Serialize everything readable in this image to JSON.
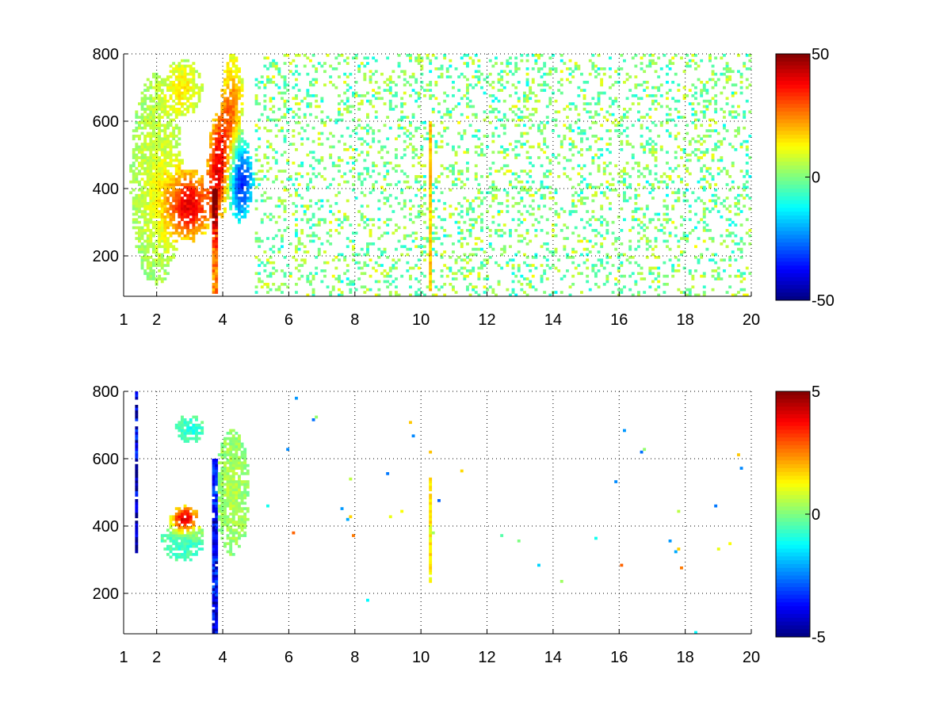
{
  "figure": {
    "background": "#ffffff"
  },
  "colormap": "jet",
  "chart_data": [
    {
      "type": "heatmap",
      "title": "",
      "xlabel": "",
      "ylabel": "",
      "xlim": [
        1,
        20
      ],
      "ylim": [
        80,
        800
      ],
      "grid": true,
      "x_ticks": [
        1,
        2,
        4,
        6,
        8,
        10,
        12,
        14,
        16,
        18,
        20
      ],
      "y_ticks": [
        200,
        400,
        600,
        800
      ],
      "colorbar": {
        "min": -50,
        "max": 50,
        "ticks": [
          -50,
          0,
          50
        ],
        "position": "right"
      },
      "features": [
        {
          "kind": "blob",
          "x": 3.0,
          "y": 350,
          "sx": 0.5,
          "sy": 75,
          "value": 38
        },
        {
          "kind": "blob",
          "x": 3.9,
          "y": 470,
          "sx": 0.25,
          "sy": 110,
          "value": 40
        },
        {
          "kind": "blob",
          "x": 4.3,
          "y": 620,
          "sx": 0.25,
          "sy": 130,
          "value": 25
        },
        {
          "kind": "blob",
          "x": 4.5,
          "y": 430,
          "sx": 0.3,
          "sy": 90,
          "value": -40
        },
        {
          "kind": "blob",
          "x": 2.8,
          "y": 700,
          "sx": 0.4,
          "sy": 60,
          "value": 13
        },
        {
          "kind": "blob",
          "x": 2.0,
          "y": 430,
          "sx": 0.55,
          "sy": 220,
          "value": 8
        },
        {
          "kind": "column",
          "x": 10.3,
          "y0": 100,
          "y1": 600,
          "value": 18
        },
        {
          "kind": "column",
          "x": 3.78,
          "y0": 90,
          "y1": 400,
          "value": 25
        }
      ],
      "noise": {
        "x_from": 5.0,
        "density": 0.2,
        "amplitude": 10
      }
    },
    {
      "type": "heatmap",
      "title": "",
      "xlabel": "",
      "ylabel": "",
      "xlim": [
        1,
        20
      ],
      "ylim": [
        80,
        800
      ],
      "grid": true,
      "x_ticks": [
        1,
        2,
        4,
        6,
        8,
        10,
        12,
        14,
        16,
        18,
        20
      ],
      "y_ticks": [
        200,
        400,
        600,
        800
      ],
      "colorbar": {
        "min": -5,
        "max": 5,
        "ticks": [
          -5,
          0,
          5
        ],
        "position": "right"
      },
      "features": [
        {
          "kind": "blob",
          "x": 2.85,
          "y": 420,
          "sx": 0.3,
          "sy": 30,
          "value": 4.5
        },
        {
          "kind": "blob",
          "x": 2.8,
          "y": 360,
          "sx": 0.45,
          "sy": 45,
          "value": -1.0
        },
        {
          "kind": "blob",
          "x": 4.3,
          "y": 500,
          "sx": 0.35,
          "sy": 130,
          "value": 0.5
        },
        {
          "kind": "blob",
          "x": 3.0,
          "y": 690,
          "sx": 0.3,
          "sy": 30,
          "value": -1.0
        },
        {
          "kind": "column",
          "x": 10.3,
          "y0": 230,
          "y1": 540,
          "value": 1.5
        },
        {
          "kind": "column",
          "x": 3.78,
          "y0": 80,
          "y1": 600,
          "value": -4.0
        },
        {
          "kind": "column",
          "x": 1.4,
          "y0": 320,
          "y1": 800,
          "value": -4.5
        }
      ],
      "noise": {
        "x_from": 5.0,
        "density": 0.002,
        "amplitude": 3
      }
    }
  ]
}
